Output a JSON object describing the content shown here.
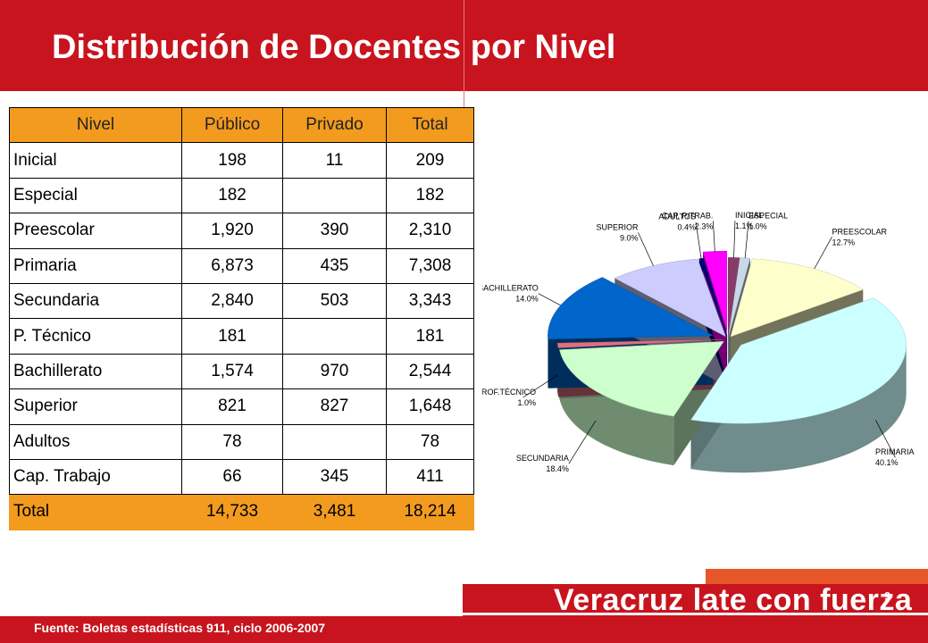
{
  "title": "Distribución de Docentes por Nivel",
  "table": {
    "headers": [
      "Nivel",
      "Público",
      "Privado",
      "Total"
    ],
    "rows": [
      [
        "Inicial",
        "198",
        "11",
        "209"
      ],
      [
        "Especial",
        "182",
        "",
        "182"
      ],
      [
        "Preescolar",
        "1,920",
        "390",
        "2,310"
      ],
      [
        "Primaria",
        "6,873",
        "435",
        "7,308"
      ],
      [
        "Secundaria",
        "2,840",
        "503",
        "3,343"
      ],
      [
        "P. Técnico",
        "181",
        "",
        "181"
      ],
      [
        "Bachillerato",
        "1,574",
        "970",
        "2,544"
      ],
      [
        "Superior",
        "821",
        "827",
        "1,648"
      ],
      [
        "Adultos",
        "78",
        "",
        "78"
      ],
      [
        "Cap. Trabajo",
        "66",
        "345",
        "411"
      ]
    ],
    "total": [
      "Total",
      "14,733",
      "3,481",
      "18,214"
    ]
  },
  "chart_data": {
    "type": "pie",
    "title": "",
    "slices": [
      {
        "label": "INICIAL",
        "pct_label": "1.1%",
        "value": 1.1,
        "color": "#8a3a6a"
      },
      {
        "label": "ESPECIAL",
        "pct_label": "1.0%",
        "value": 1.0,
        "color": "#c8d8e8"
      },
      {
        "label": "PREESCOLAR",
        "pct_label": "12.7%",
        "value": 12.7,
        "color": "#ffffcc"
      },
      {
        "label": "PRIMARIA",
        "pct_label": "40.1%",
        "value": 40.1,
        "color": "#ccffff"
      },
      {
        "label": "SECUNDARIA",
        "pct_label": "18.4%",
        "value": 18.4,
        "color": "#ccffcc"
      },
      {
        "label": "PROF.TÉCNICO",
        "pct_label": "1.0%",
        "value": 1.0,
        "color": "#e07080"
      },
      {
        "label": "BACHILLERATO",
        "pct_label": "14.0%",
        "value": 14.0,
        "color": "#0066cc"
      },
      {
        "label": "SUPERIOR",
        "pct_label": "9.0%",
        "value": 9.0,
        "color": "#ccccff"
      },
      {
        "label": "ADULTOS",
        "pct_label": "0.4%",
        "value": 0.4,
        "color": "#000080"
      },
      {
        "label": "CAP. P/TRAB.",
        "pct_label": "2.3%",
        "value": 2.3,
        "color": "#ff00ff"
      }
    ]
  },
  "footer": {
    "source": "Fuente: Boletas estadísticas 911, ciclo 2006-2007",
    "brand": "Veracruz late con fuerza",
    "page": "9"
  }
}
